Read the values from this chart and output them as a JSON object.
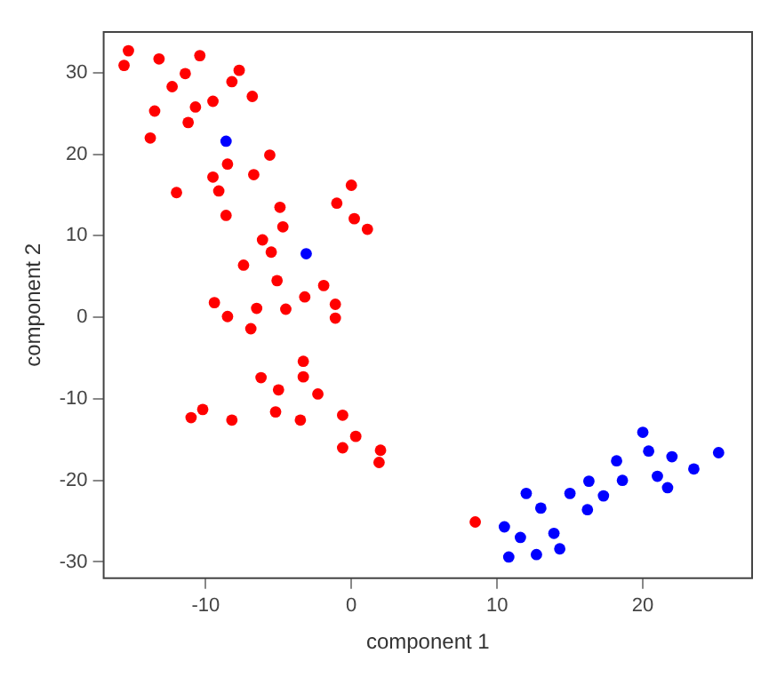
{
  "chart_data": {
    "type": "scatter",
    "xlabel": "component 1",
    "ylabel": "component 2",
    "xlim": [
      -17,
      27.5
    ],
    "ylim": [
      -32,
      35
    ],
    "xticks": [
      -10,
      0,
      10,
      20
    ],
    "yticks": [
      -30,
      -20,
      -10,
      0,
      10,
      20,
      30
    ],
    "grid": false,
    "legend": false,
    "marker": "circle",
    "series": [
      {
        "color": "#ff0000",
        "x": [
          -15.3,
          -15.6,
          -13.2,
          -10.4,
          -7.7,
          -11.4,
          -8.2,
          -12.3,
          -6.8,
          -9.5,
          -10.7,
          -13.5,
          -11.2,
          -13.8,
          -5.6,
          -8.5,
          -6.7,
          -9.5,
          0,
          -9.1,
          -12.0,
          -1.0,
          -4.9,
          -8.6,
          0.2,
          -4.7,
          1.1,
          -6.1,
          -5.5,
          -7.4,
          -5.1,
          -1.9,
          -3.2,
          -1.1,
          -9.4,
          -6.5,
          -4.5,
          -8.5,
          -1.1,
          -6.9,
          -3.3,
          -6.2,
          -3.3,
          -5.0,
          -2.3,
          -11.0,
          -10.2,
          -8.2,
          -5.2,
          -3.5,
          -0.6,
          0.3,
          -0.6,
          2.0,
          1.9,
          8.5
        ],
        "values": [
          32.7,
          30.9,
          31.7,
          32.1,
          30.3,
          29.9,
          28.9,
          28.3,
          27.1,
          26.5,
          25.8,
          25.3,
          23.9,
          22.0,
          19.9,
          18.8,
          17.5,
          17.2,
          16.2,
          15.5,
          15.3,
          14.0,
          13.5,
          12.5,
          12.1,
          11.1,
          10.8,
          9.5,
          8.0,
          6.4,
          4.5,
          3.9,
          2.5,
          1.6,
          1.8,
          1.1,
          1.0,
          0.1,
          -0.1,
          -1.4,
          -5.4,
          -7.4,
          -7.3,
          -8.9,
          -9.4,
          -12.3,
          -11.3,
          -12.6,
          -11.6,
          -12.6,
          -12.0,
          -14.6,
          -16.0,
          -16.3,
          -17.8,
          -25.1
        ]
      },
      {
        "color": "#0000ff",
        "x": [
          -8.6,
          -3.1,
          20.0,
          20.4,
          22.0,
          25.2,
          23.5,
          18.2,
          21.0,
          21.7,
          16.3,
          18.6,
          12.0,
          15.0,
          17.3,
          13.0,
          16.2,
          10.5,
          13.9,
          11.6,
          14.3,
          10.8,
          12.7
        ],
        "values": [
          21.6,
          7.8,
          -14.1,
          -16.4,
          -17.1,
          -16.6,
          -18.6,
          -17.6,
          -19.5,
          -20.9,
          -20.1,
          -20.0,
          -21.6,
          -21.6,
          -21.9,
          -23.4,
          -23.6,
          -25.7,
          -26.5,
          -27.0,
          -28.4,
          -29.4,
          -29.1
        ]
      }
    ]
  }
}
